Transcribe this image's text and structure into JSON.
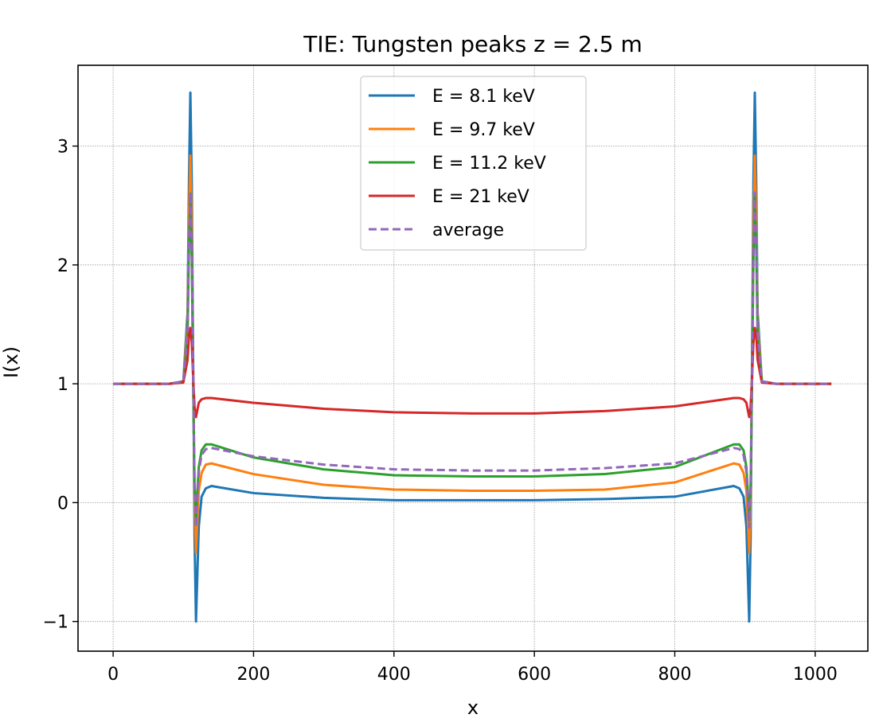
{
  "chart_data": {
    "type": "line",
    "title": "TIE: Tungsten peaks  z = 2.5 m",
    "xlabel": "x",
    "ylabel": "I(x)",
    "xlim": [
      -50,
      1075
    ],
    "ylim": [
      -1.25,
      3.68
    ],
    "xticks": [
      0,
      200,
      400,
      600,
      800,
      1000
    ],
    "yticks": [
      -1,
      0,
      1,
      2,
      3
    ],
    "xtick_labels": [
      "0",
      "200",
      "400",
      "600",
      "800",
      "1000"
    ],
    "ytick_labels": [
      "−1",
      "0",
      "1",
      "2",
      "3"
    ],
    "grid": true,
    "legend_position": "top-center",
    "series": [
      {
        "name": "E = 8.1 keV",
        "color": "#1f77b4",
        "style": "solid",
        "x": [
          0,
          80,
          100,
          106,
          108,
          110,
          112,
          114,
          116,
          118,
          120,
          122,
          126,
          132,
          140,
          200,
          300,
          400,
          512,
          600,
          700,
          800,
          884,
          892,
          898,
          902,
          904,
          906,
          908,
          910,
          912,
          914,
          916,
          918,
          924,
          944,
          1023
        ],
        "y": [
          1.0,
          1.0,
          1.02,
          1.6,
          2.7,
          3.45,
          2.7,
          1.2,
          -0.3,
          -1.0,
          -0.6,
          -0.2,
          0.05,
          0.12,
          0.14,
          0.08,
          0.04,
          0.02,
          0.02,
          0.02,
          0.03,
          0.05,
          0.14,
          0.12,
          0.05,
          -0.2,
          -0.6,
          -1.0,
          -0.3,
          1.2,
          2.7,
          3.45,
          2.7,
          1.6,
          1.02,
          1.0,
          1.0
        ]
      },
      {
        "name": "E = 9.7 keV",
        "color": "#ff7f0e",
        "style": "solid",
        "x": [
          0,
          80,
          100,
          106,
          108,
          110,
          112,
          114,
          116,
          118,
          120,
          122,
          126,
          132,
          140,
          200,
          300,
          400,
          512,
          600,
          700,
          800,
          884,
          892,
          898,
          902,
          904,
          906,
          908,
          910,
          912,
          914,
          916,
          918,
          924,
          944,
          1023
        ],
        "y": [
          1.0,
          1.0,
          1.02,
          1.5,
          2.4,
          2.92,
          2.3,
          1.1,
          0.0,
          -0.42,
          -0.15,
          0.1,
          0.25,
          0.32,
          0.33,
          0.24,
          0.15,
          0.11,
          0.1,
          0.1,
          0.11,
          0.17,
          0.33,
          0.32,
          0.25,
          0.1,
          -0.15,
          -0.42,
          0.0,
          1.1,
          2.3,
          2.92,
          2.4,
          1.5,
          1.02,
          1.0,
          1.0
        ]
      },
      {
        "name": "E = 11.2 keV",
        "color": "#2ca02c",
        "style": "solid",
        "x": [
          0,
          80,
          100,
          106,
          108,
          110,
          112,
          114,
          116,
          118,
          120,
          122,
          126,
          132,
          140,
          200,
          300,
          400,
          512,
          600,
          700,
          800,
          884,
          892,
          898,
          902,
          904,
          906,
          908,
          910,
          912,
          914,
          916,
          918,
          924,
          944,
          1023
        ],
        "y": [
          1.0,
          1.0,
          1.02,
          1.4,
          2.15,
          2.6,
          2.05,
          1.0,
          0.12,
          -0.15,
          0.1,
          0.3,
          0.44,
          0.49,
          0.49,
          0.38,
          0.28,
          0.23,
          0.22,
          0.22,
          0.24,
          0.3,
          0.49,
          0.49,
          0.44,
          0.3,
          0.1,
          -0.15,
          0.12,
          1.0,
          2.05,
          2.6,
          2.15,
          1.4,
          1.02,
          1.0,
          1.0
        ]
      },
      {
        "name": "E = 21 keV",
        "color": "#d62728",
        "style": "solid",
        "x": [
          0,
          80,
          100,
          106,
          108,
          110,
          112,
          114,
          116,
          118,
          120,
          122,
          126,
          132,
          140,
          200,
          300,
          400,
          512,
          600,
          700,
          800,
          884,
          892,
          898,
          902,
          904,
          906,
          908,
          910,
          912,
          914,
          916,
          918,
          924,
          944,
          1023
        ],
        "y": [
          1.0,
          1.0,
          1.01,
          1.2,
          1.4,
          1.47,
          1.35,
          1.05,
          0.8,
          0.72,
          0.78,
          0.84,
          0.87,
          0.88,
          0.88,
          0.84,
          0.79,
          0.76,
          0.75,
          0.75,
          0.77,
          0.81,
          0.88,
          0.88,
          0.87,
          0.84,
          0.78,
          0.72,
          0.8,
          1.05,
          1.35,
          1.47,
          1.4,
          1.2,
          1.01,
          1.0,
          1.0
        ]
      },
      {
        "name": "average",
        "color": "#9467bd",
        "style": "dashed",
        "x": [
          0,
          80,
          100,
          106,
          108,
          110,
          112,
          114,
          116,
          118,
          120,
          122,
          126,
          132,
          140,
          200,
          300,
          400,
          512,
          600,
          700,
          800,
          884,
          892,
          898,
          902,
          904,
          906,
          908,
          910,
          912,
          914,
          916,
          918,
          924,
          944,
          1023
        ],
        "y": [
          1.0,
          1.0,
          1.02,
          1.42,
          2.16,
          2.61,
          2.1,
          1.09,
          0.16,
          -0.21,
          0.03,
          0.26,
          0.4,
          0.45,
          0.46,
          0.39,
          0.32,
          0.28,
          0.27,
          0.27,
          0.29,
          0.33,
          0.46,
          0.45,
          0.4,
          0.26,
          0.03,
          -0.21,
          0.16,
          1.09,
          2.1,
          2.61,
          2.16,
          1.42,
          1.02,
          1.0,
          1.0
        ]
      }
    ]
  }
}
